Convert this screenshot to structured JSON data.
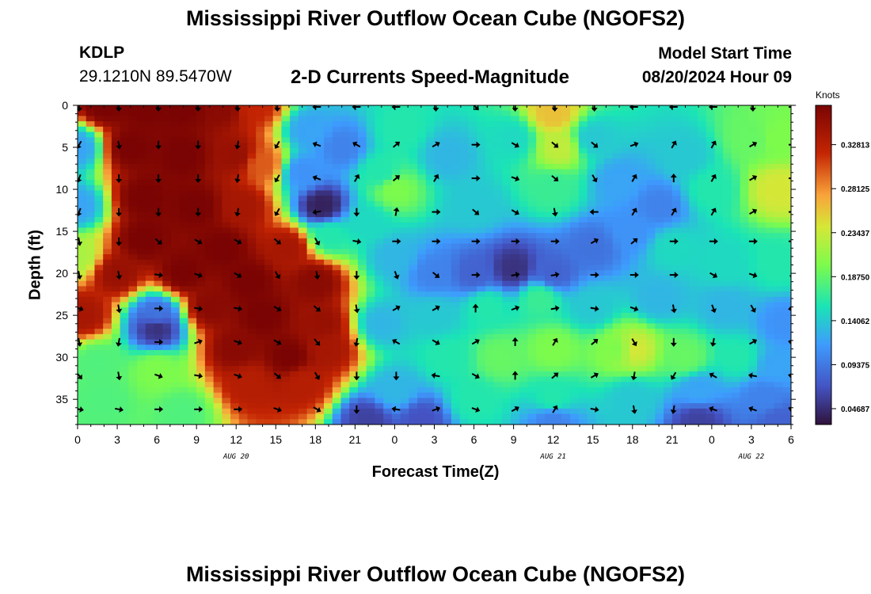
{
  "header": {
    "title": "Mississippi River Outflow Ocean Cube (NGOFS2)",
    "station": "KDLP",
    "location": "29.1210N  89.5470W",
    "subtitle": "2-D Currents Speed-Magnitude",
    "model_label": "Model Start Time",
    "model_time": "08/20/2024 Hour 09",
    "footer_title": "Mississippi River Outflow Ocean Cube (NGOFS2)"
  },
  "chart_data": {
    "type": "heatmap",
    "xlabel": "Forecast Time(Z)",
    "ylabel": "Depth (ft)",
    "colorbar_label": "Knots",
    "x_ticks": [
      "0",
      "3",
      "6",
      "9",
      "12",
      "15",
      "18",
      "21",
      "0",
      "3",
      "6",
      "9",
      "12",
      "15",
      "18",
      "21",
      "0",
      "3",
      "6"
    ],
    "date_labels": [
      {
        "text": "AUG 20",
        "at_tick": 4
      },
      {
        "text": "AUG 21",
        "at_tick": 12
      },
      {
        "text": "AUG 22",
        "at_tick": 17
      }
    ],
    "y_ticks": [
      "0",
      "5",
      "10",
      "15",
      "20",
      "25",
      "30",
      "35"
    ],
    "xlim_hours": [
      0,
      54
    ],
    "ylim_ft": [
      0,
      38
    ],
    "colorbar_ticks": [
      "0.32813",
      "0.28125",
      "0.23437",
      "0.18750",
      "0.14062",
      "0.09375",
      "0.04687"
    ],
    "colorbar_range": [
      0.03,
      0.37
    ],
    "colors": {
      "dark_red": "#7a0403",
      "red": "#c42503",
      "orange": "#f9a23a",
      "yellow": "#d6e737",
      "green": "#7dfb4c",
      "cyan": "#1ae4b6",
      "blue": "#3e9bfe",
      "dark_blue": "#30123b"
    },
    "speed_features": [
      {
        "hour": 2,
        "depth": 0,
        "speed": 0.37
      },
      {
        "hour": 5,
        "depth": 0,
        "speed": 0.37
      },
      {
        "hour": 8,
        "depth": 0,
        "speed": 0.37
      },
      {
        "hour": 11,
        "depth": 0,
        "speed": 0.36
      },
      {
        "hour": 13.5,
        "depth": 0,
        "speed": 0.32
      },
      {
        "hour": 4,
        "depth": 5,
        "speed": 0.37
      },
      {
        "hour": 8,
        "depth": 6,
        "speed": 0.37
      },
      {
        "hour": 12,
        "depth": 6,
        "speed": 0.35
      },
      {
        "hour": 14,
        "depth": 7,
        "speed": 0.3
      },
      {
        "hour": 5,
        "depth": 11,
        "speed": 0.37
      },
      {
        "hour": 9,
        "depth": 12,
        "speed": 0.37
      },
      {
        "hour": 12.5,
        "depth": 12,
        "speed": 0.34
      },
      {
        "hour": 5,
        "depth": 16,
        "speed": 0.37
      },
      {
        "hour": 11,
        "depth": 17,
        "speed": 0.37
      },
      {
        "hour": 16,
        "depth": 17,
        "speed": 0.34
      },
      {
        "hour": 3,
        "depth": 20,
        "speed": 0.35
      },
      {
        "hour": 8,
        "depth": 20,
        "speed": 0.37
      },
      {
        "hour": 13,
        "depth": 21,
        "speed": 0.37
      },
      {
        "hour": 18,
        "depth": 21,
        "speed": 0.36
      },
      {
        "hour": 0.5,
        "depth": 25,
        "speed": 0.34
      },
      {
        "hour": 10,
        "depth": 24,
        "speed": 0.36
      },
      {
        "hour": 14,
        "depth": 25,
        "speed": 0.37
      },
      {
        "hour": 18.5,
        "depth": 26,
        "speed": 0.35
      },
      {
        "hour": 12,
        "depth": 29,
        "speed": 0.36
      },
      {
        "hour": 16,
        "depth": 30,
        "speed": 0.37
      },
      {
        "hour": 19,
        "depth": 29,
        "speed": 0.34
      },
      {
        "hour": 13,
        "depth": 33,
        "speed": 0.33
      },
      {
        "hour": 17,
        "depth": 33,
        "speed": 0.33
      },
      {
        "hour": 6,
        "depth": 26.5,
        "speed": 0.05
      },
      {
        "hour": 6,
        "depth": 25,
        "speed": 0.09
      },
      {
        "hour": 1.5,
        "depth": 30.5,
        "speed": 0.18
      },
      {
        "hour": 6,
        "depth": 31.5,
        "speed": 0.2
      },
      {
        "hour": 2,
        "depth": 35,
        "speed": 0.18
      },
      {
        "hour": 8,
        "depth": 36.5,
        "speed": 0.18
      },
      {
        "hour": 0,
        "depth": 5,
        "speed": 0.12
      },
      {
        "hour": 0,
        "depth": 12,
        "speed": 0.12
      },
      {
        "hour": 0,
        "depth": 18,
        "speed": 0.22
      },
      {
        "hour": 18.5,
        "depth": 12,
        "speed": 0.04
      },
      {
        "hour": 17,
        "depth": 8,
        "speed": 0.11
      },
      {
        "hour": 17.5,
        "depth": 3,
        "speed": 0.12
      },
      {
        "hour": 20,
        "depth": 5,
        "speed": 0.1
      },
      {
        "hour": 19,
        "depth": 15.5,
        "speed": 0.16
      },
      {
        "hour": 22,
        "depth": 14,
        "speed": 0.15
      },
      {
        "hour": 23,
        "depth": 8,
        "speed": 0.16
      },
      {
        "hour": 24,
        "depth": 10,
        "speed": 0.2
      },
      {
        "hour": 24.5,
        "depth": 3,
        "speed": 0.16
      },
      {
        "hour": 28,
        "depth": 6,
        "speed": 0.13
      },
      {
        "hour": 30,
        "depth": 12,
        "speed": 0.14
      },
      {
        "hour": 33,
        "depth": 4,
        "speed": 0.15
      },
      {
        "hour": 36,
        "depth": 10,
        "speed": 0.17
      },
      {
        "hour": 36,
        "depth": 1,
        "speed": 0.26
      },
      {
        "hour": 36.5,
        "depth": 5,
        "speed": 0.23
      },
      {
        "hour": 39,
        "depth": 4,
        "speed": 0.14
      },
      {
        "hour": 41,
        "depth": 9,
        "speed": 0.12
      },
      {
        "hour": 44,
        "depth": 12,
        "speed": 0.1
      },
      {
        "hour": 46,
        "depth": 6,
        "speed": 0.14
      },
      {
        "hour": 48,
        "depth": 10,
        "speed": 0.16
      },
      {
        "hour": 51,
        "depth": 4,
        "speed": 0.19
      },
      {
        "hour": 53,
        "depth": 10,
        "speed": 0.24
      },
      {
        "hour": 53,
        "depth": 4,
        "speed": 0.2
      },
      {
        "hour": 24,
        "depth": 18,
        "speed": 0.13
      },
      {
        "hour": 27,
        "depth": 20,
        "speed": 0.1
      },
      {
        "hour": 30,
        "depth": 20,
        "speed": 0.08
      },
      {
        "hour": 33,
        "depth": 19.5,
        "speed": 0.05
      },
      {
        "hour": 36,
        "depth": 20,
        "speed": 0.08
      },
      {
        "hour": 39,
        "depth": 17,
        "speed": 0.09
      },
      {
        "hour": 42,
        "depth": 15,
        "speed": 0.11
      },
      {
        "hour": 45,
        "depth": 17,
        "speed": 0.15
      },
      {
        "hour": 49,
        "depth": 19,
        "speed": 0.15
      },
      {
        "hour": 53,
        "depth": 19,
        "speed": 0.16
      },
      {
        "hour": 23,
        "depth": 26,
        "speed": 0.13
      },
      {
        "hour": 27,
        "depth": 25,
        "speed": 0.14
      },
      {
        "hour": 31,
        "depth": 24,
        "speed": 0.16
      },
      {
        "hour": 35,
        "depth": 23,
        "speed": 0.17
      },
      {
        "hour": 39,
        "depth": 24,
        "speed": 0.14
      },
      {
        "hour": 44,
        "depth": 23,
        "speed": 0.13
      },
      {
        "hour": 49,
        "depth": 24,
        "speed": 0.13
      },
      {
        "hour": 53.5,
        "depth": 26,
        "speed": 0.11
      },
      {
        "hour": 28,
        "depth": 30,
        "speed": 0.16
      },
      {
        "hour": 32,
        "depth": 30,
        "speed": 0.19
      },
      {
        "hour": 36,
        "depth": 29,
        "speed": 0.2
      },
      {
        "hour": 41,
        "depth": 29,
        "speed": 0.2
      },
      {
        "hour": 42,
        "depth": 29,
        "speed": 0.24
      },
      {
        "hour": 46,
        "depth": 30,
        "speed": 0.19
      },
      {
        "hour": 50,
        "depth": 30,
        "speed": 0.16
      },
      {
        "hour": 53,
        "depth": 31,
        "speed": 0.12
      },
      {
        "hour": 24,
        "depth": 34,
        "speed": 0.13
      },
      {
        "hour": 30,
        "depth": 35,
        "speed": 0.16
      },
      {
        "hour": 36,
        "depth": 35,
        "speed": 0.16
      },
      {
        "hour": 42,
        "depth": 35,
        "speed": 0.14
      },
      {
        "hour": 47,
        "depth": 34,
        "speed": 0.12
      },
      {
        "hour": 52,
        "depth": 35,
        "speed": 0.1
      },
      {
        "hour": 22,
        "depth": 37.5,
        "speed": 0.06
      },
      {
        "hour": 26,
        "depth": 37.5,
        "speed": 0.07
      },
      {
        "hour": 36,
        "depth": 37.5,
        "speed": 0.1
      },
      {
        "hour": 47,
        "depth": 37.5,
        "speed": 0.06
      },
      {
        "hour": 53,
        "depth": 37.5,
        "speed": 0.08
      }
    ],
    "arrow_rows_ft": [
      0,
      4.5,
      8.5,
      12.5,
      16,
      20,
      24,
      28,
      32,
      36
    ],
    "arrow_cols_hours": [
      0,
      3,
      6,
      9,
      12,
      15,
      18,
      21,
      24,
      27,
      30,
      33,
      36,
      39,
      42,
      45,
      48,
      51,
      54
    ],
    "arrow_angles_deg": [
      [
        90,
        90,
        90,
        90,
        90,
        90,
        180,
        180,
        180,
        90,
        45,
        90,
        90,
        90,
        180,
        180,
        180,
        90,
        0
      ],
      [
        120,
        80,
        90,
        90,
        100,
        120,
        200,
        210,
        320,
        330,
        0,
        30,
        40,
        40,
        340,
        300,
        300,
        330,
        0
      ],
      [
        110,
        90,
        90,
        90,
        100,
        120,
        200,
        300,
        320,
        300,
        0,
        20,
        40,
        60,
        300,
        270,
        300,
        330,
        0
      ],
      [
        110,
        90,
        90,
        90,
        100,
        120,
        170,
        90,
        280,
        0,
        40,
        30,
        80,
        180,
        300,
        300,
        300,
        330,
        0
      ],
      [
        80,
        90,
        40,
        30,
        30,
        40,
        60,
        10,
        0,
        0,
        0,
        0,
        0,
        330,
        320,
        0,
        0,
        0,
        0
      ],
      [
        80,
        80,
        10,
        20,
        30,
        60,
        80,
        90,
        70,
        40,
        0,
        350,
        350,
        0,
        0,
        0,
        30,
        20,
        100
      ],
      [
        20,
        80,
        0,
        10,
        10,
        30,
        40,
        80,
        330,
        330,
        270,
        340,
        350,
        10,
        20,
        80,
        70,
        60,
        170
      ],
      [
        80,
        100,
        0,
        340,
        20,
        30,
        50,
        100,
        210,
        30,
        330,
        270,
        300,
        320,
        60,
        90,
        100,
        330,
        190
      ],
      [
        50,
        80,
        20,
        10,
        20,
        40,
        60,
        90,
        90,
        190,
        30,
        270,
        320,
        330,
        100,
        120,
        210,
        190,
        190
      ],
      [
        10,
        10,
        0,
        0,
        0,
        20,
        30,
        90,
        190,
        340,
        20,
        330,
        300,
        10,
        80,
        100,
        200,
        200,
        200
      ]
    ]
  }
}
